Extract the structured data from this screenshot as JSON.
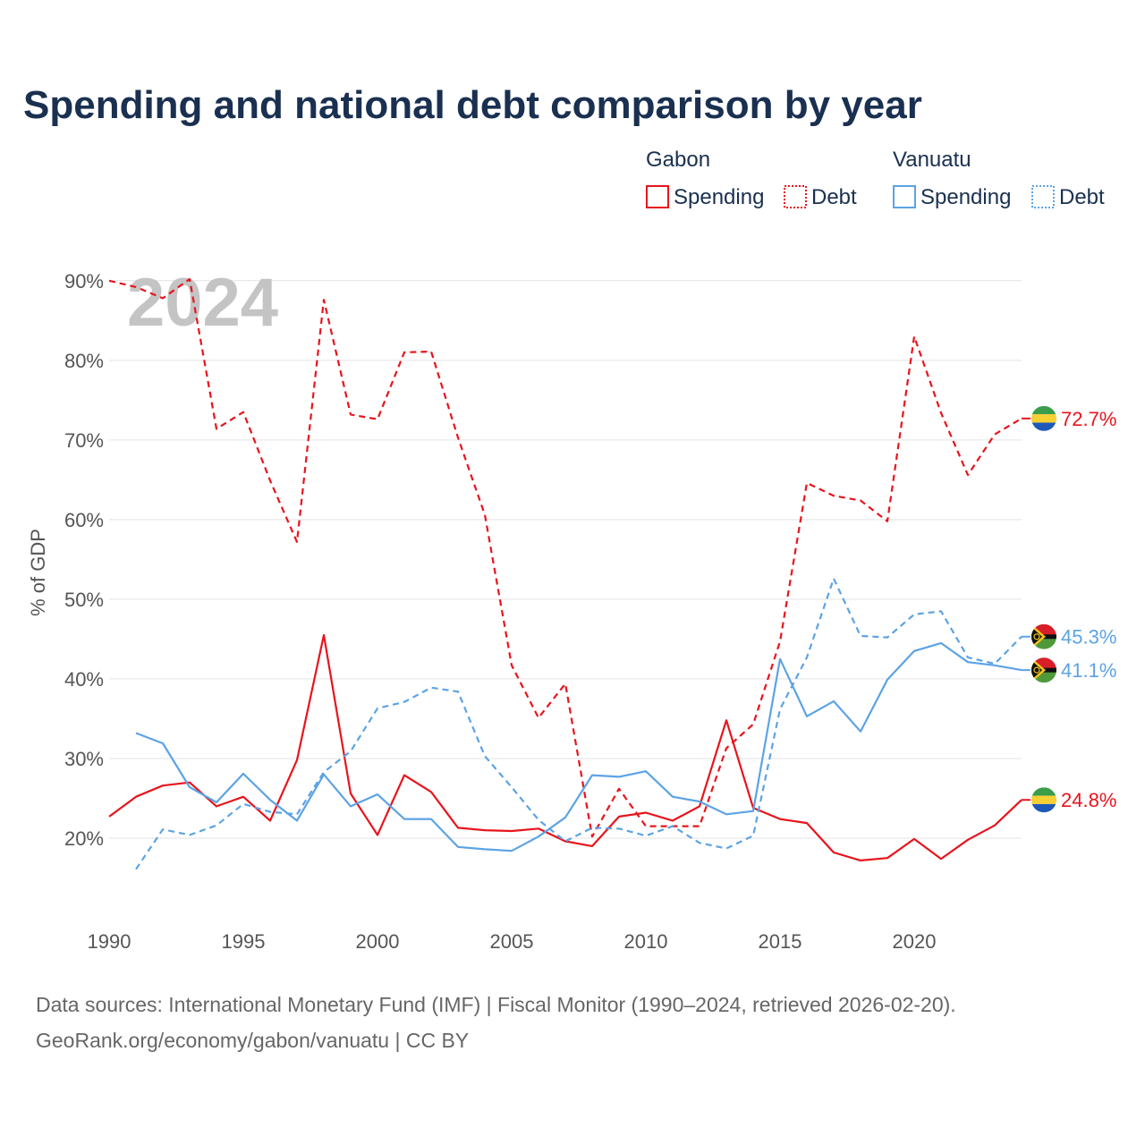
{
  "chart_data": {
    "type": "line",
    "title": "Spending and national debt comparison by year",
    "ylabel": "% of GDP",
    "xlabel": "",
    "year_label": "2024",
    "x": [
      1990,
      1991,
      1992,
      1993,
      1994,
      1995,
      1996,
      1997,
      1998,
      1999,
      2000,
      2001,
      2002,
      2003,
      2004,
      2005,
      2006,
      2007,
      2008,
      2009,
      2010,
      2011,
      2012,
      2013,
      2014,
      2015,
      2016,
      2017,
      2018,
      2019,
      2020,
      2021,
      2022,
      2023,
      2024
    ],
    "xlim": [
      1990,
      2024
    ],
    "ylim": [
      10,
      92
    ],
    "x_ticks": [
      1990,
      1995,
      2000,
      2005,
      2010,
      2015,
      2020
    ],
    "x_tick_labels": [
      "1990",
      "1995",
      "2000",
      "2005",
      "2010",
      "2015",
      "2020"
    ],
    "y_ticks": [
      20,
      30,
      40,
      50,
      60,
      70,
      80,
      90
    ],
    "y_tick_labels": [
      "20%",
      "30%",
      "40%",
      "50%",
      "60%",
      "70%",
      "80%",
      "90%"
    ],
    "grid": true,
    "legend": {
      "groups": [
        {
          "name": "Gabon",
          "items": [
            {
              "label": "Spending",
              "style": "solid"
            },
            {
              "label": "Debt",
              "style": "dotted"
            }
          ]
        },
        {
          "name": "Vanuatu",
          "items": [
            {
              "label": "Spending",
              "style": "solid"
            },
            {
              "label": "Debt",
              "style": "dotted"
            }
          ]
        }
      ],
      "placement": "top-right"
    },
    "series": [
      {
        "name": "Gabon Spending",
        "country": "Gabon",
        "metric": "Spending",
        "color": "#e8141c",
        "dash": "solid",
        "values": [
          22.7,
          25.2,
          26.6,
          27.0,
          24.0,
          25.2,
          22.2,
          29.8,
          45.5,
          25.6,
          20.4,
          27.9,
          25.8,
          21.3,
          21.0,
          20.9,
          21.2,
          19.6,
          19.0,
          22.7,
          23.2,
          22.2,
          24.0,
          34.8,
          23.8,
          22.4,
          21.9,
          18.2,
          17.2,
          17.5,
          19.9,
          17.4,
          19.8,
          21.6,
          24.8
        ],
        "end_label": "24.8%"
      },
      {
        "name": "Gabon Debt",
        "country": "Gabon",
        "metric": "Debt",
        "color": "#e8141c",
        "dash": "dashed",
        "values": [
          90.0,
          89.2,
          87.8,
          90.2,
          71.4,
          73.5,
          64.9,
          57.2,
          87.6,
          73.2,
          72.6,
          81.0,
          81.1,
          70.3,
          60.6,
          41.7,
          35.1,
          39.4,
          20.2,
          26.2,
          21.5,
          21.5,
          21.5,
          31.3,
          34.3,
          44.7,
          64.6,
          63.0,
          62.4,
          59.8,
          83.0,
          73.4,
          65.6,
          70.7,
          72.7
        ],
        "end_label": "72.7%"
      },
      {
        "name": "Vanuatu Spending",
        "country": "Vanuatu",
        "metric": "Spending",
        "color": "#5ca3e4",
        "dash": "solid",
        "values": [
          null,
          33.2,
          31.9,
          26.4,
          24.5,
          28.1,
          24.8,
          22.2,
          28.0,
          24.0,
          25.5,
          22.4,
          22.4,
          18.9,
          18.6,
          18.4,
          20.2,
          22.6,
          27.9,
          27.7,
          28.4,
          25.2,
          24.6,
          23.0,
          23.4,
          42.5,
          35.3,
          37.2,
          33.4,
          39.9,
          43.5,
          44.5,
          42.1,
          41.7,
          41.1
        ],
        "end_label": "41.1%"
      },
      {
        "name": "Vanuatu Debt",
        "country": "Vanuatu",
        "metric": "Debt",
        "color": "#5ca3e4",
        "dash": "dashed",
        "values": [
          null,
          16.1,
          21.1,
          20.4,
          21.6,
          24.3,
          23.3,
          23.0,
          28.3,
          30.9,
          36.3,
          37.1,
          38.9,
          38.4,
          30.3,
          26.4,
          22.3,
          19.6,
          21.3,
          21.2,
          20.3,
          21.5,
          19.4,
          18.7,
          20.3,
          36.2,
          42.7,
          52.6,
          45.4,
          45.2,
          48.1,
          48.5,
          42.7,
          41.9,
          45.3
        ],
        "end_label": "45.3%"
      }
    ]
  },
  "footer": {
    "line1": "Data sources: International Monetary Fund (IMF) | Fiscal Monitor (1990–2024, retrieved 2026-02-20).",
    "line2": "GeoRank.org/economy/gabon/vanuatu | CC BY"
  },
  "flags": {
    "gabon_colors": [
      "#f7d034",
      "#3a9d4a",
      "#1e58b8"
    ],
    "vanuatu_colors": [
      "#d81e28",
      "#111111",
      "#4e9a3a",
      "#f5c518"
    ]
  }
}
